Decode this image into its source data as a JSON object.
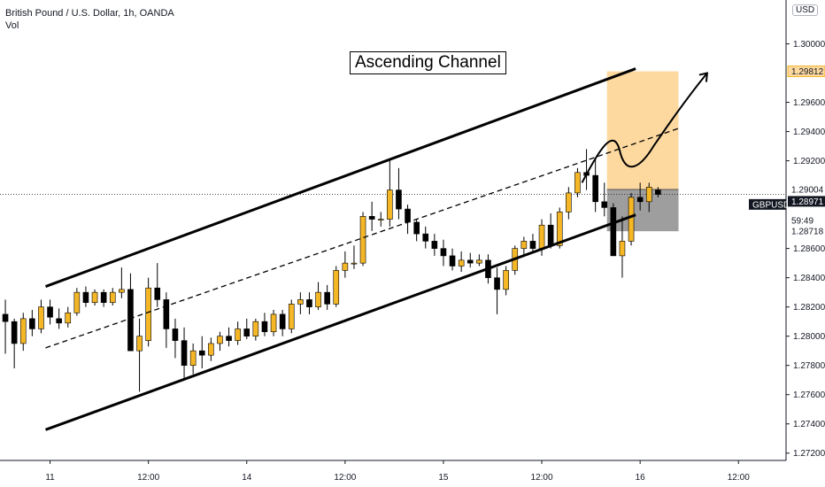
{
  "header": {
    "symbol_line": "British Pound / U.S. Dollar, 1h, OANDA",
    "indicator": "Vol",
    "currency": "USD"
  },
  "annotation": {
    "title": "Ascending Channel"
  },
  "colors": {
    "bull": "#f5b726",
    "bear": "#000000",
    "target_zone": "#fdd9a0",
    "stop_zone": "#9e9e9e"
  },
  "chart_data": {
    "type": "candlestick",
    "symbol": "GBPUSD",
    "timeframe": "1h",
    "yaxis": {
      "range": [
        1.2715,
        1.303
      ],
      "ticks": [
        "1.30000",
        "1.29600",
        "1.29400",
        "1.29200",
        "1.28600",
        "1.28400",
        "1.28200",
        "1.28000",
        "1.27800",
        "1.27600",
        "1.27400",
        "1.27200"
      ],
      "tick_values": [
        1.3,
        1.296,
        1.294,
        1.292,
        1.286,
        1.284,
        1.282,
        1.28,
        1.278,
        1.276,
        1.274,
        1.272
      ]
    },
    "xaxis": {
      "labels": [
        "11",
        "12:00",
        "14",
        "12:00",
        "15",
        "12:00",
        "16",
        "12:00"
      ],
      "label_bars": [
        5,
        16,
        27,
        38,
        49,
        60,
        71,
        82
      ]
    },
    "price_labels": [
      {
        "text": "1.29812",
        "value": 1.29812,
        "kind": "target"
      },
      {
        "text": "1.29004",
        "value": 1.29004,
        "kind": "entry"
      },
      {
        "text": "GBPUSD",
        "value": 1.2895,
        "kind": "symbol"
      },
      {
        "text": "1.28971",
        "value": 1.28971,
        "kind": "current"
      },
      {
        "text": "59:49",
        "value": 1.289,
        "kind": "countdown"
      },
      {
        "text": "1.28718",
        "value": 1.28718,
        "kind": "stop"
      }
    ],
    "candles": [
      [
        1.2815,
        1.2825,
        1.2788,
        1.281
      ],
      [
        1.281,
        1.2812,
        1.2778,
        1.2795
      ],
      [
        1.2795,
        1.2816,
        1.279,
        1.2812
      ],
      [
        1.2812,
        1.2818,
        1.28,
        1.2805
      ],
      [
        1.2805,
        1.2825,
        1.2802,
        1.282
      ],
      [
        1.282,
        1.2825,
        1.2808,
        1.2813
      ],
      [
        1.2812,
        1.2819,
        1.2805,
        1.2809
      ],
      [
        1.2809,
        1.282,
        1.2806,
        1.2816
      ],
      [
        1.2816,
        1.2833,
        1.2814,
        1.283
      ],
      [
        1.283,
        1.2834,
        1.282,
        1.2823
      ],
      [
        1.2823,
        1.2832,
        1.2821,
        1.283
      ],
      [
        1.283,
        1.2832,
        1.282,
        1.2823
      ],
      [
        1.2823,
        1.2833,
        1.2821,
        1.283
      ],
      [
        1.283,
        1.2847,
        1.2826,
        1.2832
      ],
      [
        1.2832,
        1.2843,
        1.279,
        1.279
      ],
      [
        1.279,
        1.2812,
        1.2762,
        1.28
      ],
      [
        1.2797,
        1.284,
        1.2793,
        1.2833
      ],
      [
        1.2833,
        1.285,
        1.282,
        1.2825
      ],
      [
        1.2825,
        1.283,
        1.2792,
        1.2805
      ],
      [
        1.2805,
        1.2812,
        1.2785,
        1.2797
      ],
      [
        1.2797,
        1.2806,
        1.277,
        1.278
      ],
      [
        1.278,
        1.2795,
        1.2774,
        1.279
      ],
      [
        1.279,
        1.28,
        1.2778,
        1.2787
      ],
      [
        1.2787,
        1.2799,
        1.2783,
        1.2795
      ],
      [
        1.2795,
        1.2803,
        1.279,
        1.28
      ],
      [
        1.28,
        1.2806,
        1.2793,
        1.2797
      ],
      [
        1.2797,
        1.281,
        1.2794,
        1.2805
      ],
      [
        1.2805,
        1.2812,
        1.2798,
        1.28
      ],
      [
        1.28,
        1.2812,
        1.2797,
        1.281
      ],
      [
        1.281,
        1.2816,
        1.28,
        1.2803
      ],
      [
        1.2803,
        1.2818,
        1.28,
        1.2815
      ],
      [
        1.2815,
        1.2818,
        1.28,
        1.2805
      ],
      [
        1.2805,
        1.2825,
        1.2802,
        1.2822
      ],
      [
        1.2822,
        1.283,
        1.2815,
        1.2825
      ],
      [
        1.2825,
        1.283,
        1.2815,
        1.282
      ],
      [
        1.282,
        1.2837,
        1.2818,
        1.283
      ],
      [
        1.283,
        1.2835,
        1.2818,
        1.2822
      ],
      [
        1.2822,
        1.2848,
        1.282,
        1.2845
      ],
      [
        1.2845,
        1.2858,
        1.284,
        1.285
      ],
      [
        1.285,
        1.2862,
        1.2846,
        1.285
      ],
      [
        1.285,
        1.2885,
        1.2848,
        1.2882
      ],
      [
        1.2882,
        1.2892,
        1.2872,
        1.288
      ],
      [
        1.288,
        1.2885,
        1.2875,
        1.288
      ],
      [
        1.288,
        1.292,
        1.2875,
        1.29
      ],
      [
        1.29,
        1.2915,
        1.288,
        1.2887
      ],
      [
        1.2887,
        1.289,
        1.287,
        1.2878
      ],
      [
        1.2878,
        1.288,
        1.2865,
        1.287
      ],
      [
        1.287,
        1.2875,
        1.286,
        1.2865
      ],
      [
        1.2865,
        1.287,
        1.2855,
        1.286
      ],
      [
        1.286,
        1.2866,
        1.2848,
        1.2855
      ],
      [
        1.2855,
        1.286,
        1.2845,
        1.2848
      ],
      [
        1.2848,
        1.2858,
        1.2844,
        1.2852
      ],
      [
        1.2852,
        1.2857,
        1.2847,
        1.285
      ],
      [
        1.285,
        1.2856,
        1.2848,
        1.2852
      ],
      [
        1.2852,
        1.2856,
        1.2836,
        1.284
      ],
      [
        1.284,
        1.2847,
        1.2815,
        1.2832
      ],
      [
        1.2832,
        1.2848,
        1.2828,
        1.2845
      ],
      [
        1.2845,
        1.2862,
        1.2842,
        1.286
      ],
      [
        1.286,
        1.2868,
        1.2855,
        1.2865
      ],
      [
        1.2865,
        1.287,
        1.2858,
        1.286
      ],
      [
        1.286,
        1.288,
        1.2855,
        1.2876
      ],
      [
        1.2876,
        1.2884,
        1.286,
        1.2862
      ],
      [
        1.2862,
        1.2888,
        1.286,
        1.2885
      ],
      [
        1.2885,
        1.2902,
        1.288,
        1.2898
      ],
      [
        1.2898,
        1.2915,
        1.2895,
        1.2912
      ],
      [
        1.2912,
        1.2928,
        1.29,
        1.291
      ],
      [
        1.291,
        1.2921,
        1.2885,
        1.2892
      ],
      [
        1.2892,
        1.2905,
        1.2882,
        1.2888
      ],
      [
        1.2888,
        1.2891,
        1.2855,
        1.2855
      ],
      [
        1.2855,
        1.2882,
        1.284,
        1.2865
      ],
      [
        1.2865,
        1.2898,
        1.2862,
        1.2895
      ],
      [
        1.2895,
        1.2905,
        1.2886,
        1.2892
      ],
      [
        1.2892,
        1.2905,
        1.2885,
        1.2902
      ],
      [
        1.29,
        1.2902,
        1.2895,
        1.2897
      ]
    ],
    "channel": {
      "upper": [
        [
          5,
          1.2834
        ],
        [
          71,
          1.2983
        ]
      ],
      "lower": [
        [
          5,
          1.2736
        ],
        [
          71,
          1.2883
        ]
      ],
      "midline_dashed": [
        [
          5,
          1.2792
        ],
        [
          71,
          1.2932
        ]
      ]
    },
    "position": {
      "entry": 1.29004,
      "target": 1.29812,
      "stop": 1.28718,
      "start_bar": 67,
      "end_bar": 75
    }
  }
}
